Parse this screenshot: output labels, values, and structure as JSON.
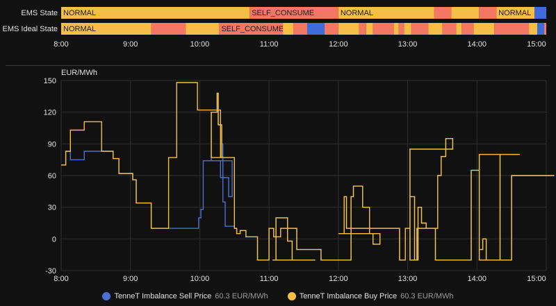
{
  "colors": {
    "normal": "#F5BE48",
    "self_consume": "#F27863",
    "blue": "#3E6CD8",
    "sell": "#4A70D4",
    "buy": "#F5C042",
    "grid": "#2e2e2e"
  },
  "timeline": {
    "ticks": [
      "8:00",
      "9:00",
      "10:00",
      "11:00",
      "12:00",
      "13:00",
      "14:00",
      "15:00"
    ],
    "rows": [
      {
        "label": "EMS State",
        "segments": [
          {
            "start": 0.0,
            "end": 2.72,
            "state": "NORMAL",
            "text": "NORMAL"
          },
          {
            "start": 2.72,
            "end": 4.0,
            "state": "SELF_CONSUME",
            "text": "SELF_CONSUME"
          },
          {
            "start": 4.0,
            "end": 5.38,
            "state": "NORMAL",
            "text": "NORMAL"
          },
          {
            "start": 5.38,
            "end": 5.63,
            "state": "SELF_CONSUME",
            "text": ""
          },
          {
            "start": 5.63,
            "end": 6.03,
            "state": "NORMAL",
            "text": ""
          },
          {
            "start": 6.03,
            "end": 6.28,
            "state": "SELF_CONSUME",
            "text": ""
          },
          {
            "start": 6.28,
            "end": 6.83,
            "state": "NORMAL",
            "text": "NORMAL"
          },
          {
            "start": 6.83,
            "end": 7.0,
            "state": "OTHER",
            "text": ""
          }
        ]
      },
      {
        "label": "EMS Ideal State",
        "segments": [
          {
            "start": 0.0,
            "end": 1.3,
            "state": "NORMAL",
            "text": "NORMAL"
          },
          {
            "start": 1.3,
            "end": 1.8,
            "state": "SELF_CONSUME",
            "text": ""
          },
          {
            "start": 1.8,
            "end": 2.28,
            "state": "NORMAL",
            "text": ""
          },
          {
            "start": 2.28,
            "end": 3.2,
            "state": "SELF_CONSUME",
            "text": "SELF_CONSUME"
          },
          {
            "start": 3.2,
            "end": 3.35,
            "state": "NORMAL",
            "text": ""
          },
          {
            "start": 3.35,
            "end": 3.55,
            "state": "SELF_CONSUME",
            "text": ""
          },
          {
            "start": 3.55,
            "end": 3.8,
            "state": "OTHER",
            "text": ""
          },
          {
            "start": 3.8,
            "end": 4.0,
            "state": "SELF_CONSUME",
            "text": ""
          },
          {
            "start": 4.0,
            "end": 4.3,
            "state": "NORMAL",
            "text": ""
          },
          {
            "start": 4.3,
            "end": 4.4,
            "state": "SELF_CONSUME",
            "text": ""
          },
          {
            "start": 4.4,
            "end": 4.5,
            "state": "NORMAL",
            "text": ""
          },
          {
            "start": 4.5,
            "end": 4.8,
            "state": "SELF_CONSUME",
            "text": ""
          },
          {
            "start": 4.8,
            "end": 4.87,
            "state": "NORMAL",
            "text": ""
          },
          {
            "start": 4.87,
            "end": 4.95,
            "state": "SELF_CONSUME",
            "text": ""
          },
          {
            "start": 4.95,
            "end": 5.05,
            "state": "NORMAL",
            "text": ""
          },
          {
            "start": 5.05,
            "end": 5.3,
            "state": "SELF_CONSUME",
            "text": ""
          },
          {
            "start": 5.3,
            "end": 5.5,
            "state": "NORMAL",
            "text": ""
          },
          {
            "start": 5.5,
            "end": 5.7,
            "state": "SELF_CONSUME",
            "text": ""
          },
          {
            "start": 5.7,
            "end": 5.78,
            "state": "NORMAL",
            "text": ""
          },
          {
            "start": 5.78,
            "end": 5.95,
            "state": "SELF_CONSUME",
            "text": ""
          },
          {
            "start": 5.95,
            "end": 6.25,
            "state": "NORMAL",
            "text": ""
          },
          {
            "start": 6.25,
            "end": 6.75,
            "state": "SELF_CONSUME",
            "text": ""
          },
          {
            "start": 6.75,
            "end": 6.87,
            "state": "NORMAL",
            "text": ""
          },
          {
            "start": 6.87,
            "end": 6.97,
            "state": "OTHER",
            "text": ""
          },
          {
            "start": 6.97,
            "end": 7.0,
            "state": "SELF_CONSUME",
            "text": ""
          }
        ]
      }
    ]
  },
  "chart_data": {
    "type": "line",
    "ylabel": "EUR/MWh",
    "ylim": [
      -30,
      150
    ],
    "yticks": [
      -30,
      0,
      30,
      60,
      90,
      120,
      150
    ],
    "xticks": [
      "8:00",
      "9:00",
      "10:00",
      "11:00",
      "12:00",
      "13:00",
      "14:00",
      "15:00"
    ],
    "x_start": "8:00",
    "x_end": "15:07",
    "step": "after",
    "series": [
      {
        "name": "TenneT Imbalance Sell Price",
        "legend_value": "60.3 EUR/MWh",
        "points": [
          [
            "8:00",
            70
          ],
          [
            "8:04",
            83
          ],
          [
            "8:08",
            75
          ],
          [
            "8:20",
            83
          ],
          [
            "8:35",
            83
          ],
          [
            "8:45",
            76
          ],
          [
            "8:50",
            62
          ],
          [
            "9:02",
            56
          ],
          [
            "9:05",
            34
          ],
          [
            "9:18",
            10
          ],
          [
            "9:25",
            10
          ],
          [
            "9:33",
            10
          ],
          [
            "9:40",
            10
          ],
          [
            "9:47",
            10
          ],
          [
            "9:58",
            10
          ],
          [
            "9:59",
            20
          ],
          [
            "9:61",
            28
          ],
          [
            "9:63",
            74
          ],
          [
            "9:78",
            58
          ],
          [
            "9:85",
            40
          ],
          [
            "9:88",
            74
          ],
          [
            "10:10",
            120
          ],
          [
            "10:15",
            138
          ],
          [
            "10:16",
            108
          ],
          [
            "10:19",
            90
          ],
          [
            "10:20",
            35
          ],
          [
            "10:22",
            12
          ],
          [
            "10:25",
            12
          ],
          [
            "10:27",
            12
          ],
          [
            "10:30",
            10
          ],
          [
            "10:32",
            5
          ],
          [
            "10:35",
            8
          ],
          [
            "10:40",
            2
          ],
          [
            "10:50",
            -20
          ],
          [
            "10:58",
            -20
          ],
          [
            "10:60",
            10
          ],
          [
            "10:64",
            2
          ],
          [
            "10:70",
            10
          ],
          [
            "10:76",
            -2
          ],
          [
            "10:80",
            -20
          ],
          [
            "10:90",
            -20
          ],
          [
            "10:98",
            -20
          ],
          [
            "10:100",
            -20
          ],
          [
            "11:03",
            -20
          ],
          [
            "11:06",
            20
          ],
          [
            "11:16",
            10
          ],
          [
            "11:24",
            -10
          ],
          [
            "11:30",
            -10
          ],
          [
            "11:40",
            -10
          ],
          [
            "11:45",
            -20
          ],
          [
            "11:50",
            -20
          ],
          [
            "11:60",
            -20
          ],
          [
            "11:63",
            -20
          ],
          [
            "11:67",
            -20
          ],
          [
            "11:70",
            -20
          ],
          [
            "11:71",
            40
          ],
          [
            "11:73",
            50
          ],
          [
            "11:81",
            30
          ],
          [
            "11:87",
            5
          ],
          [
            "11:90",
            -5
          ],
          [
            "11:96",
            5
          ],
          [
            "12:00",
            5
          ],
          [
            "12:05",
            40
          ],
          [
            "12:07",
            10
          ],
          [
            "12:13",
            10
          ],
          [
            "12:33",
            10
          ],
          [
            "12:43",
            10
          ],
          [
            "12:53",
            -20
          ],
          [
            "12:58",
            10
          ],
          [
            "12:62",
            40
          ],
          [
            "12:66",
            -20
          ],
          [
            "12:69",
            30
          ],
          [
            "12:72",
            15
          ],
          [
            "12:76",
            10
          ],
          [
            "12:80",
            10
          ],
          [
            "12:86",
            60
          ],
          [
            "12:89",
            78
          ],
          [
            "12:93",
            95
          ],
          [
            "12:99",
            85
          ],
          [
            "13:02",
            -20
          ],
          [
            "13:08",
            10
          ],
          [
            "13:15",
            10
          ],
          [
            "13:20",
            10
          ],
          [
            "13:24",
            -20
          ],
          [
            "13:30",
            -20
          ],
          [
            "13:35",
            -20
          ],
          [
            "13:42",
            -20
          ],
          [
            "13:46",
            -20
          ],
          [
            "13:51",
            -20
          ],
          [
            "13:55",
            65
          ],
          [
            "13:62",
            -10
          ],
          [
            "13:65",
            0
          ],
          [
            "13:68",
            -20
          ],
          [
            "13:72",
            -20
          ],
          [
            "13:80",
            80
          ],
          [
            "13:90",
            80
          ],
          [
            "13:97",
            80
          ],
          [
            "14:02",
            -20
          ],
          [
            "14:05",
            -20
          ],
          [
            "14:08",
            -20
          ],
          [
            "14:12",
            -20
          ],
          [
            "14:15",
            -20
          ],
          [
            "14:20",
            -20
          ],
          [
            "14:22",
            -20
          ],
          [
            "14:26",
            -20
          ],
          [
            "14:30",
            60
          ]
        ]
      }
    ]
  },
  "legend": [
    {
      "name": "TenneT Imbalance Sell Price",
      "value": "60.3 EUR/MWh"
    },
    {
      "name": "TenneT Imbalance Buy Price",
      "value": "60.3 EUR/MWh"
    }
  ]
}
